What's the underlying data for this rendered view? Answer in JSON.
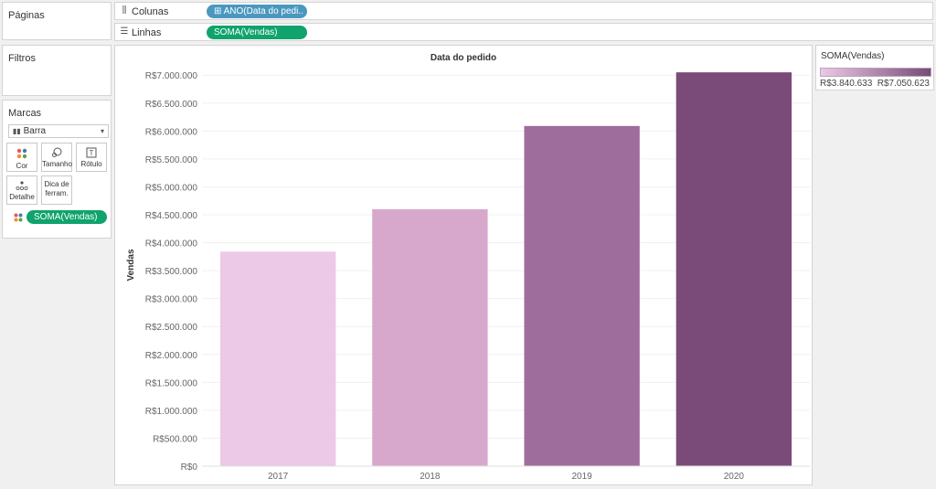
{
  "paginas": {
    "title": "Páginas"
  },
  "filtros": {
    "title": "Filtros"
  },
  "marcas": {
    "title": "Marcas",
    "mark_type": "Barra",
    "buttons": [
      {
        "label": "Cor",
        "icon": "dots-icon"
      },
      {
        "label": "Tamanho",
        "icon": "size-icon"
      },
      {
        "label": "Rótulo",
        "icon": "label-icon"
      },
      {
        "label": "Detalhe",
        "icon": "detail-icon"
      },
      {
        "label": "Dica de\nferram.",
        "icon": ""
      }
    ],
    "field_pill": "SOMA(Vendas)"
  },
  "shelves": {
    "colunas": {
      "icon": "columns-icon",
      "label": "Colunas",
      "pill": "⊞ ANO(Data do pedi.."
    },
    "linhas": {
      "icon": "rows-icon",
      "label": "Linhas",
      "pill": "SOMA(Vendas)"
    }
  },
  "legend": {
    "title": "SOMA(Vendas)",
    "min_label": "R$3.840.633",
    "max_label": "R$7.050.623",
    "color_low": "#ecc9e6",
    "color_high": "#764b78"
  },
  "chart_data": {
    "type": "bar",
    "title": "Data do pedido",
    "ylabel": "Vendas",
    "categories": [
      "2017",
      "2018",
      "2019",
      "2020"
    ],
    "values": [
      3840633,
      4600000,
      6090000,
      7050623
    ],
    "ylim": [
      0,
      7200000
    ],
    "yticks": [
      0,
      500000,
      1000000,
      1500000,
      2000000,
      2500000,
      3000000,
      3500000,
      4000000,
      4500000,
      5000000,
      5500000,
      6000000,
      6500000,
      7000000
    ],
    "ytick_labels": [
      "R$0",
      "R$500.000",
      "R$1.000.000",
      "R$1.500.000",
      "R$2.000.000",
      "R$2.500.000",
      "R$3.000.000",
      "R$3.500.000",
      "R$4.000.000",
      "R$4.500.000",
      "R$5.000.000",
      "R$5.500.000",
      "R$6.000.000",
      "R$6.500.000",
      "R$7.000.000"
    ],
    "bar_colors": [
      "#ecc9e6",
      "#d8a8cc",
      "#9f6d9b",
      "#7a4b79"
    ],
    "grid": true
  }
}
